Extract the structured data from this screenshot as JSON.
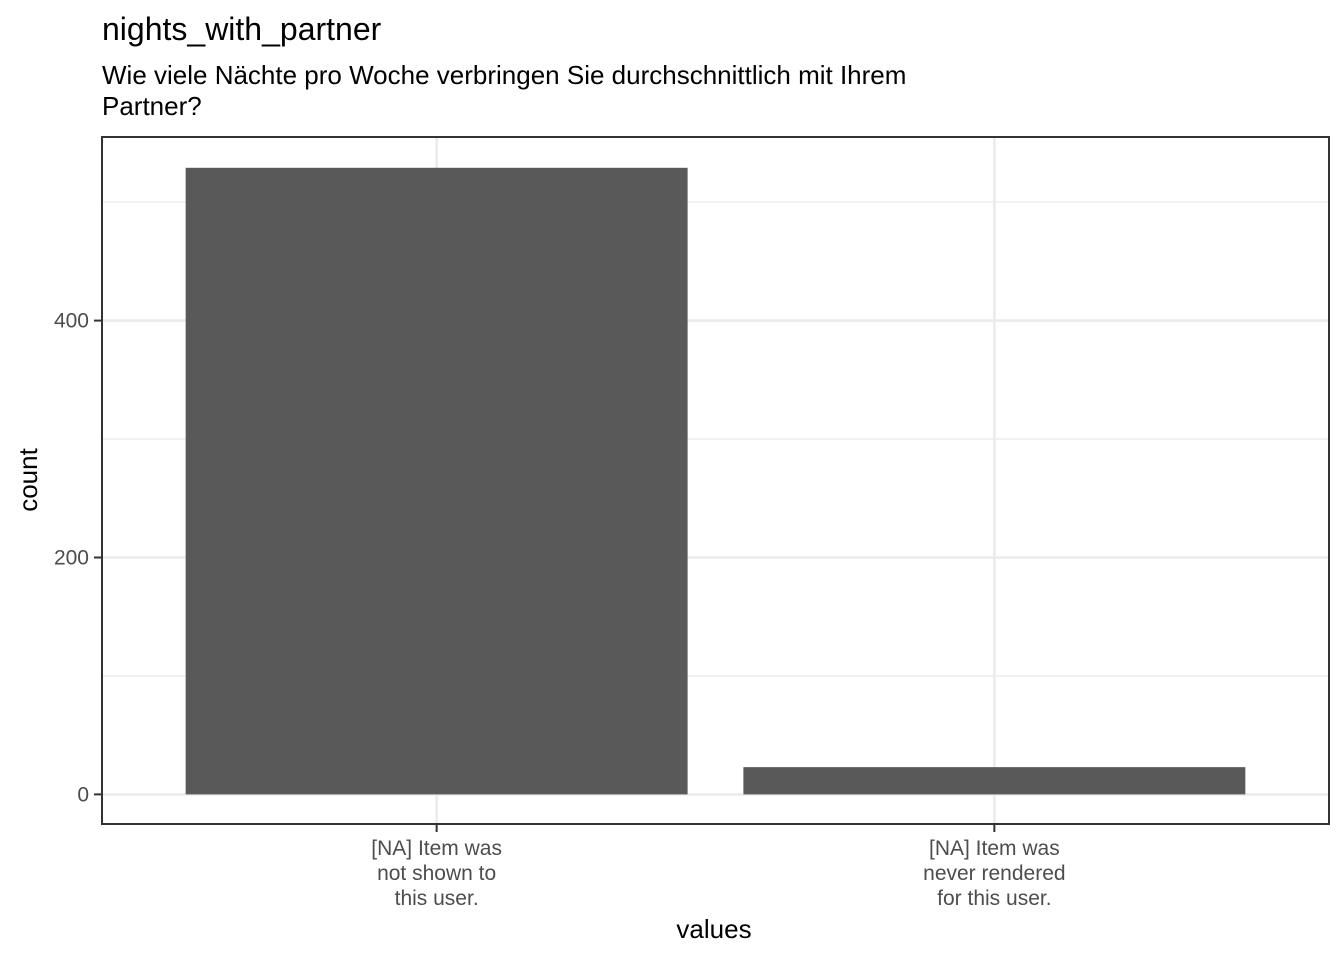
{
  "chart_data": {
    "type": "bar",
    "title": "nights_with_partner",
    "subtitle": [
      "Wie viele Nächte pro Woche verbringen Sie durchschnittlich mit Ihrem",
      "Partner?"
    ],
    "xlabel": "values",
    "ylabel": "count",
    "categories": [
      [
        "[NA] Item was",
        "not shown to",
        "this user."
      ],
      [
        "[NA] Item was",
        "never rendered",
        "for this user."
      ]
    ],
    "values": [
      529,
      23
    ],
    "ylim": [
      -25,
      555
    ],
    "yticks": [
      0,
      200,
      400
    ],
    "yticks_labels": [
      "0",
      "200",
      "400"
    ],
    "yminor": [
      100,
      300,
      500
    ],
    "grid": true,
    "bar_color": "#595959",
    "grid_color": "#ebebeb",
    "panel_border_color": "#333333"
  }
}
